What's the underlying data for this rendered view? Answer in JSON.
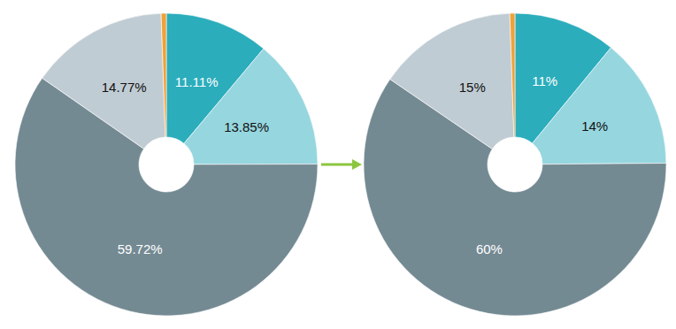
{
  "chart_data": [
    {
      "type": "pie",
      "values": [
        11.11,
        13.85,
        59.72,
        14.77,
        0.55
      ],
      "value_labels": [
        "11.11%",
        "13.85%",
        "59.72%",
        "14.77%",
        null
      ],
      "colors": [
        "#2badbc",
        "#96d6df",
        "#748a93",
        "#c0ccd3",
        "#eea23a"
      ],
      "data_labels": true
    },
    {
      "type": "pie",
      "values": [
        11,
        14,
        60,
        15,
        0.55
      ],
      "value_labels": [
        "11%",
        "14%",
        "60%",
        "15%",
        null
      ],
      "colors": [
        "#2badbc",
        "#96d6df",
        "#748a93",
        "#c0ccd3",
        "#eea23a"
      ],
      "data_labels": true
    }
  ]
}
